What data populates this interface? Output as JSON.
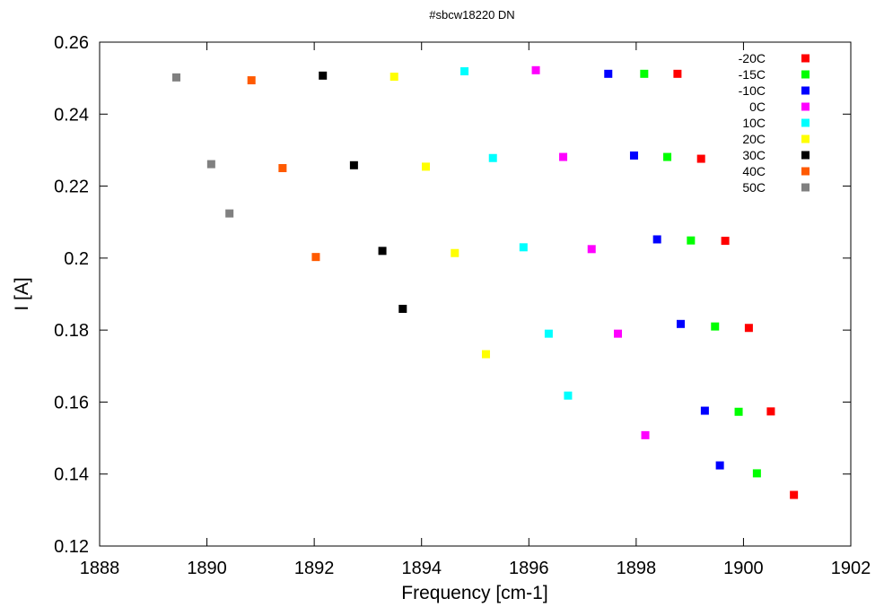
{
  "chart_data": {
    "type": "scatter",
    "title": "#sbcw18220 DN",
    "xlabel": "Frequency [cm-1]",
    "ylabel": "I [A]",
    "xlim": [
      1888,
      1902
    ],
    "ylim": [
      0.12,
      0.26
    ],
    "xticks": [
      1888,
      1890,
      1892,
      1894,
      1896,
      1898,
      1900,
      1902
    ],
    "xtick_labels": [
      "1888",
      "1890",
      "1892",
      "1894",
      "1896",
      "1898",
      "1900",
      "1902"
    ],
    "yticks": [
      0.12,
      0.14,
      0.16,
      0.18,
      0.2,
      0.22,
      0.24,
      0.26
    ],
    "ytick_labels": [
      "0.12",
      "0.14",
      "0.16",
      "0.18",
      "0.2",
      "0.22",
      "0.24",
      "0.26"
    ],
    "grid": false,
    "legend_position": "top-right",
    "series": [
      {
        "name": "-20C",
        "color": "#ff0000",
        "points": [
          [
            1898.77,
            0.2512
          ],
          [
            1899.21,
            0.2276
          ],
          [
            1899.66,
            0.2048
          ],
          [
            1900.1,
            0.1806
          ],
          [
            1900.51,
            0.1574
          ],
          [
            1900.94,
            0.1342
          ]
        ]
      },
      {
        "name": "-15C",
        "color": "#00ff00",
        "points": [
          [
            1898.15,
            0.2512
          ],
          [
            1898.58,
            0.2281
          ],
          [
            1899.02,
            0.2049
          ],
          [
            1899.47,
            0.181
          ],
          [
            1899.91,
            0.1573
          ],
          [
            1900.25,
            0.1402
          ]
        ]
      },
      {
        "name": "-10C",
        "color": "#0000ff",
        "points": [
          [
            1897.48,
            0.2512
          ],
          [
            1897.96,
            0.2285
          ],
          [
            1898.39,
            0.2052
          ],
          [
            1898.83,
            0.1817
          ],
          [
            1899.28,
            0.1576
          ],
          [
            1899.56,
            0.1424
          ]
        ]
      },
      {
        "name": "0C",
        "color": "#ff00ff",
        "points": [
          [
            1896.13,
            0.2522
          ],
          [
            1896.64,
            0.2281
          ],
          [
            1897.17,
            0.2025
          ],
          [
            1897.66,
            0.179
          ],
          [
            1898.17,
            0.1508
          ]
        ]
      },
      {
        "name": "10C",
        "color": "#00ffff",
        "points": [
          [
            1894.8,
            0.2519
          ],
          [
            1895.33,
            0.2278
          ],
          [
            1895.9,
            0.203
          ],
          [
            1896.37,
            0.179
          ],
          [
            1896.73,
            0.1618
          ]
        ]
      },
      {
        "name": "20C",
        "color": "#ffff00",
        "points": [
          [
            1893.49,
            0.2504
          ],
          [
            1894.08,
            0.2254
          ],
          [
            1894.62,
            0.2014
          ],
          [
            1895.2,
            0.1733
          ]
        ]
      },
      {
        "name": "30C",
        "color": "#000000",
        "points": [
          [
            1892.16,
            0.2507
          ],
          [
            1892.74,
            0.2258
          ],
          [
            1893.27,
            0.202
          ],
          [
            1893.65,
            0.1859
          ]
        ]
      },
      {
        "name": "40C",
        "color": "#ff5a00",
        "points": [
          [
            1890.83,
            0.2494
          ],
          [
            1891.41,
            0.225
          ],
          [
            1892.03,
            0.2003
          ]
        ]
      },
      {
        "name": "50C",
        "color": "#808080",
        "points": [
          [
            1889.43,
            0.2502
          ],
          [
            1890.08,
            0.2261
          ],
          [
            1890.42,
            0.2124
          ]
        ]
      }
    ]
  }
}
